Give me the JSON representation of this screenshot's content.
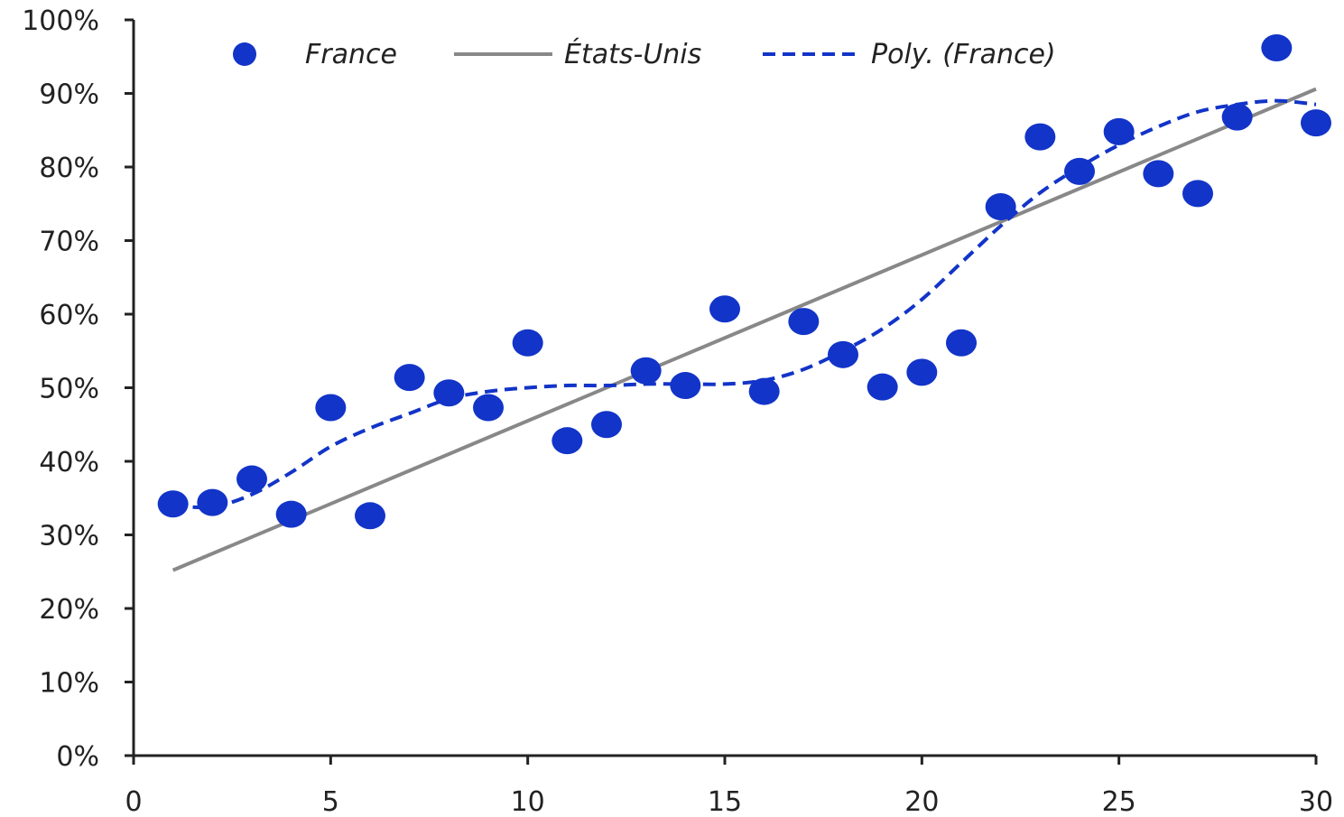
{
  "chart_data": {
    "type": "scatter",
    "x_ticks": [
      "0",
      "5",
      "10",
      "15",
      "20",
      "25",
      "30"
    ],
    "y_ticks": [
      "0%",
      "10%",
      "20%",
      "30%",
      "40%",
      "50%",
      "60%",
      "70%",
      "80%",
      "90%",
      "100%"
    ],
    "xlim": [
      0,
      30
    ],
    "ylim": [
      0,
      100
    ],
    "grid": false,
    "legend_position": "top",
    "series": [
      {
        "name": "France",
        "kind": "scatter",
        "color": "#1234c8",
        "x": [
          1,
          2,
          3,
          4,
          5,
          6,
          7,
          8,
          9,
          10,
          11,
          12,
          13,
          14,
          15,
          16,
          17,
          18,
          19,
          20,
          21,
          22,
          23,
          24,
          25,
          26,
          27,
          28,
          29,
          30
        ],
        "y": [
          34.2,
          34.4,
          37.6,
          32.8,
          47.3,
          32.6,
          51.4,
          49.3,
          47.3,
          56.1,
          42.8,
          45.0,
          52.3,
          50.3,
          60.7,
          49.5,
          59.0,
          54.5,
          50.1,
          52.1,
          56.1,
          74.6,
          84.1,
          79.4,
          84.8,
          79.1,
          76.4,
          86.8,
          96.2,
          86.0
        ]
      },
      {
        "name": "États-Unis",
        "kind": "line",
        "color": "#888888",
        "x": [
          1,
          30
        ],
        "y": [
          25.2,
          90.6
        ]
      },
      {
        "name": "Poly. (France)",
        "kind": "dashed-line",
        "color": "#1234c8",
        "x": [
          1,
          2,
          3,
          4,
          5,
          6,
          7,
          8,
          9,
          10,
          11,
          12,
          13,
          14,
          15,
          16,
          17,
          18,
          19,
          20,
          21,
          22,
          23,
          24,
          25,
          26,
          27,
          28,
          29,
          30
        ],
        "y": [
          34.0,
          33.8,
          35.5,
          38.5,
          42.0,
          44.5,
          46.5,
          48.5,
          49.5,
          50.0,
          50.3,
          50.3,
          50.5,
          50.5,
          50.5,
          51.0,
          52.5,
          55.0,
          58.0,
          62.0,
          67.0,
          72.0,
          76.5,
          80.0,
          83.0,
          85.5,
          87.5,
          88.5,
          89.0,
          88.5
        ]
      }
    ]
  }
}
